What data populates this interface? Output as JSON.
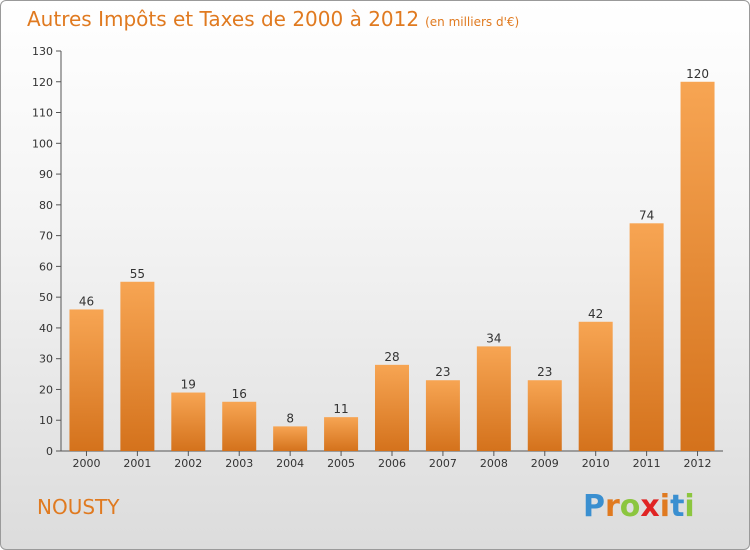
{
  "header": {
    "title": "Autres Impôts et Taxes de 2000 à 2012",
    "unit": "(en milliers d'€)"
  },
  "footer": {
    "commune": "NOUSTY",
    "logo_letters": [
      "P",
      "r",
      "o",
      "x",
      "i",
      "t",
      "i"
    ],
    "logo_colors": [
      "#3a8fd0",
      "#e07a20",
      "#8cc63f",
      "#e02424",
      "#e07a20",
      "#3a8fd0",
      "#8cc63f"
    ]
  },
  "colors": {
    "bar_light": "#f7a553",
    "bar_dark": "#d4721c",
    "title": "#e07a20"
  },
  "chart_data": {
    "type": "bar",
    "categories": [
      "2000",
      "2001",
      "2002",
      "2003",
      "2004",
      "2005",
      "2006",
      "2007",
      "2008",
      "2009",
      "2010",
      "2011",
      "2012"
    ],
    "values": [
      46,
      55,
      19,
      16,
      8,
      11,
      28,
      23,
      34,
      23,
      42,
      74,
      120
    ],
    "title": "Autres Impôts et Taxes de 2000 à 2012",
    "xlabel": "",
    "ylabel": "",
    "ylim": [
      0,
      130
    ],
    "yticks": [
      0,
      10,
      20,
      30,
      40,
      50,
      60,
      70,
      80,
      90,
      100,
      110,
      120,
      130
    ],
    "grid": false,
    "legend": "none"
  }
}
